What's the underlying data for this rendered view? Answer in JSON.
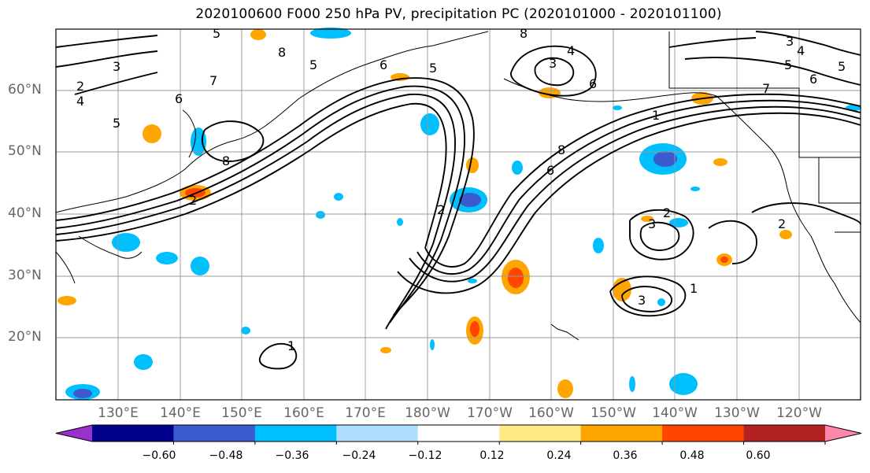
{
  "title": "2020100600 F000 250 hPa PV, precipitation PC (2020101000 - 2020101100)",
  "lat_labels": [
    "60°N",
    "50°N",
    "40°N",
    "30°N",
    "20°N"
  ],
  "lon_labels": [
    "130°E",
    "140°E",
    "150°E",
    "160°E",
    "170°E",
    "180°W",
    "170°W",
    "160°W",
    "150°W",
    "140°W",
    "130°W",
    "120°W"
  ],
  "colorbar": {
    "colors": [
      "#9932CC",
      "#00008B",
      "#3A5ACD",
      "#00BFFF",
      "#AEDFFF",
      "#FFFFFF",
      "#FFEB85",
      "#FFA500",
      "#FF4500",
      "#B22222",
      "#FF88AA"
    ],
    "ticks": [
      "−0.60",
      "−0.48",
      "−0.36",
      "−0.24",
      "−0.12",
      "0.12",
      "0.24",
      "0.36",
      "0.48",
      "0.60"
    ]
  },
  "contour_labels": [
    "1",
    "2",
    "3",
    "4",
    "5",
    "6",
    "7",
    "8"
  ]
}
